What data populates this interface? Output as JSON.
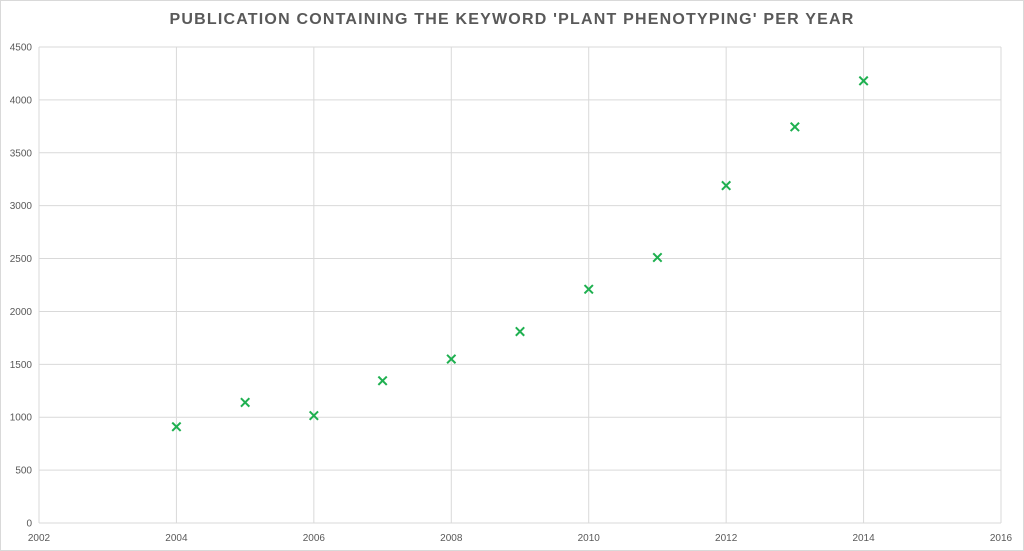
{
  "chart_data": {
    "type": "scatter",
    "title": "PUBLICATION CONTAINING THE KEYWORD 'PLANT PHENOTYPING' PER YEAR",
    "xlabel": "",
    "ylabel": "",
    "x": [
      2004,
      2005,
      2006,
      2007,
      2008,
      2009,
      2010,
      2011,
      2012,
      2013,
      2014
    ],
    "y": [
      910,
      1140,
      1015,
      1345,
      1550,
      1810,
      2210,
      2510,
      3190,
      3745,
      4180
    ],
    "xlim": [
      2002,
      2016
    ],
    "ylim": [
      0,
      4500
    ],
    "xticks": [
      "2002",
      "2004",
      "2006",
      "2008",
      "2010",
      "2012",
      "2014",
      "2016"
    ],
    "yticks": [
      "0",
      "500",
      "1000",
      "1500",
      "2000",
      "2500",
      "3000",
      "3500",
      "4000",
      "4500"
    ],
    "grid": true,
    "marker": "x",
    "color": "#1fb050"
  }
}
